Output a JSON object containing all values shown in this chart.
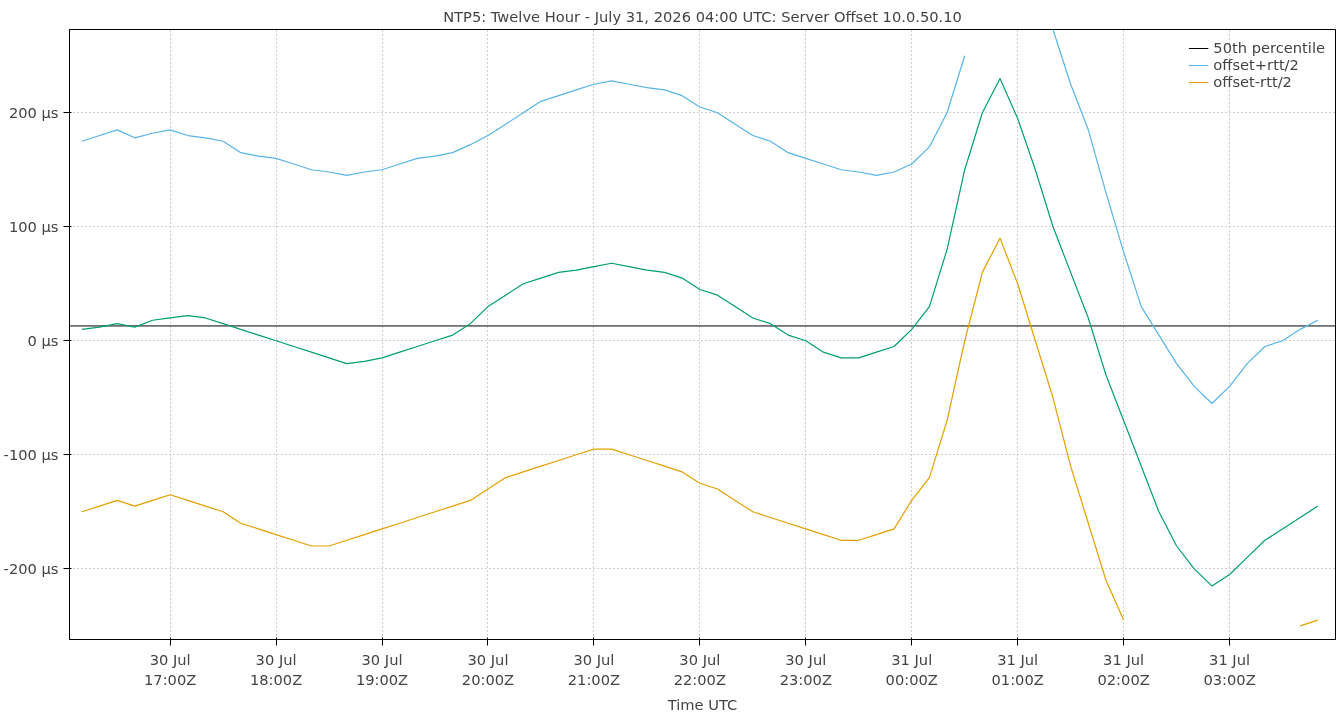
{
  "chart_data": {
    "type": "line",
    "title": "NTP5: Twelve Hour - July 31, 2026 04:00 UTC: Server Offset 10.0.50.10",
    "xlabel": "Time UTC",
    "x": [
      "2026-07-30T16:10",
      "2026-07-30T16:20",
      "2026-07-30T16:30",
      "2026-07-30T16:40",
      "2026-07-30T16:50",
      "2026-07-30T17:00",
      "2026-07-30T17:10",
      "2026-07-30T17:20",
      "2026-07-30T17:30",
      "2026-07-30T17:40",
      "2026-07-30T17:50",
      "2026-07-30T18:00",
      "2026-07-30T18:10",
      "2026-07-30T18:20",
      "2026-07-30T18:30",
      "2026-07-30T18:40",
      "2026-07-30T18:50",
      "2026-07-30T19:00",
      "2026-07-30T19:10",
      "2026-07-30T19:20",
      "2026-07-30T19:30",
      "2026-07-30T19:40",
      "2026-07-30T19:50",
      "2026-07-30T20:00",
      "2026-07-30T20:10",
      "2026-07-30T20:20",
      "2026-07-30T20:30",
      "2026-07-30T20:40",
      "2026-07-30T20:50",
      "2026-07-30T21:00",
      "2026-07-30T21:10",
      "2026-07-30T21:20",
      "2026-07-30T21:30",
      "2026-07-30T21:40",
      "2026-07-30T21:50",
      "2026-07-30T22:00",
      "2026-07-30T22:10",
      "2026-07-30T22:20",
      "2026-07-30T22:30",
      "2026-07-30T22:40",
      "2026-07-30T22:50",
      "2026-07-30T23:00",
      "2026-07-30T23:10",
      "2026-07-30T23:20",
      "2026-07-30T23:30",
      "2026-07-30T23:40",
      "2026-07-30T23:50",
      "2026-07-31T00:00",
      "2026-07-31T00:10",
      "2026-07-31T00:20",
      "2026-07-31T00:30",
      "2026-07-31T00:40",
      "2026-07-31T00:50",
      "2026-07-31T01:00",
      "2026-07-31T01:10",
      "2026-07-31T01:20",
      "2026-07-31T01:30",
      "2026-07-31T01:40",
      "2026-07-31T01:50",
      "2026-07-31T02:00",
      "2026-07-31T02:10",
      "2026-07-31T02:20",
      "2026-07-31T02:30",
      "2026-07-31T02:40",
      "2026-07-31T02:50",
      "2026-07-31T03:00",
      "2026-07-31T03:10",
      "2026-07-31T03:20",
      "2026-07-31T03:30",
      "2026-07-31T03:40",
      "2026-07-31T03:50"
    ],
    "series": [
      {
        "color": "#009e73",
        "values": [
          10,
          12,
          15,
          12,
          18,
          20,
          22,
          20,
          15,
          10,
          5,
          0,
          -5,
          -10,
          -15,
          -20,
          -18,
          -15,
          -10,
          -5,
          0,
          5,
          15,
          30,
          40,
          50,
          55,
          60,
          62,
          65,
          68,
          65,
          62,
          60,
          55,
          45,
          40,
          30,
          20,
          15,
          5,
          0,
          -10,
          -15,
          -15,
          -10,
          -5,
          10,
          30,
          80,
          150,
          200,
          230,
          195,
          150,
          100,
          60,
          20,
          -30,
          -70,
          -110,
          -150,
          -180,
          -200,
          -215,
          -205,
          -190,
          -175,
          -165,
          -155,
          -145
        ]
      },
      {
        "name": "offset+rtt/2",
        "color": "#56b4e9",
        "values": [
          175,
          180,
          185,
          178,
          182,
          185,
          180,
          178,
          175,
          165,
          162,
          160,
          155,
          150,
          148,
          145,
          148,
          150,
          155,
          160,
          162,
          165,
          172,
          180,
          190,
          200,
          210,
          215,
          220,
          225,
          228,
          225,
          222,
          220,
          215,
          205,
          200,
          190,
          180,
          175,
          165,
          160,
          155,
          150,
          148,
          145,
          148,
          155,
          170,
          200,
          250,
          null,
          null,
          null,
          null,
          273,
          225,
          185,
          130,
          78,
          30,
          5,
          -20,
          -40,
          -55,
          -40,
          -20,
          -5,
          0,
          10,
          18
        ]
      },
      {
        "name": "offset-rtt/2",
        "color": "#e69f00",
        "values": [
          -150,
          -145,
          -140,
          -145,
          -140,
          -135,
          -140,
          -145,
          -150,
          -160,
          -165,
          -170,
          -175,
          -180,
          -180,
          -175,
          -170,
          -165,
          -160,
          -155,
          -150,
          -145,
          -140,
          -130,
          -120,
          -115,
          -110,
          -105,
          -100,
          -95,
          -95,
          -100,
          -105,
          -110,
          -115,
          -125,
          -130,
          -140,
          -150,
          -155,
          -160,
          -165,
          -170,
          -175,
          -175,
          -170,
          -165,
          -140,
          -120,
          -70,
          0,
          60,
          90,
          50,
          0,
          -50,
          -110,
          -160,
          -210,
          -245,
          null,
          null,
          null,
          null,
          null,
          null,
          null,
          null,
          null,
          -250,
          -245
        ]
      }
    ],
    "xlim": [
      "2026-07-30T16:03",
      "2026-07-31T04:00"
    ],
    "xticks": [
      {
        "value": "2026-07-30T17:00",
        "label": "30 Jul\n17:00Z"
      },
      {
        "value": "2026-07-30T18:00",
        "label": "30 Jul\n18:00Z"
      },
      {
        "value": "2026-07-30T19:00",
        "label": "30 Jul\n19:00Z"
      },
      {
        "value": "2026-07-30T20:00",
        "label": "30 Jul\n20:00Z"
      },
      {
        "value": "2026-07-30T21:00",
        "label": "30 Jul\n21:00Z"
      },
      {
        "value": "2026-07-30T22:00",
        "label": "30 Jul\n22:00Z"
      },
      {
        "value": "2026-07-30T23:00",
        "label": "30 Jul\n23:00Z"
      },
      {
        "value": "2026-07-31T00:00",
        "label": "31 Jul\n00:00Z"
      },
      {
        "value": "2026-07-31T01:00",
        "label": "31 Jul\n01:00Z"
      },
      {
        "value": "2026-07-31T02:00",
        "label": "31 Jul\n02:00Z"
      },
      {
        "value": "2026-07-31T03:00",
        "label": "31 Jul\n03:00Z"
      }
    ],
    "ylim": [
      -262,
      273
    ],
    "yticks": [
      {
        "value": -200,
        "label": "-200 µs"
      },
      {
        "value": -100,
        "label": "-100 µs"
      },
      {
        "value": 0,
        "label": "0 µs"
      },
      {
        "value": 100,
        "label": "100 µs"
      },
      {
        "value": 200,
        "label": "200 µs"
      }
    ],
    "ref_lines": [
      {
        "axis": "y",
        "value": 13,
        "label": "50th percentile",
        "color": "#000000"
      }
    ],
    "grid": true,
    "legend": "top right"
  }
}
